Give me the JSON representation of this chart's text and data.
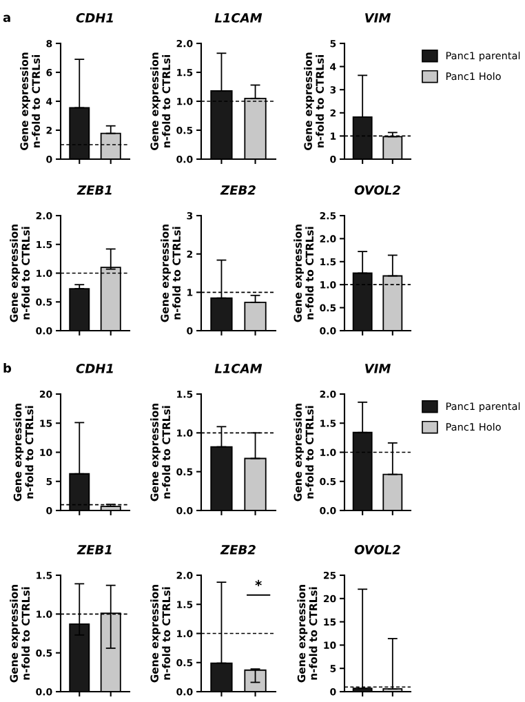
{
  "chart_data": [
    {
      "type": "bar",
      "title": "CDH1",
      "ylabel": "Gene expression\nn-fold to CTRLsi",
      "annotations": [
        "a"
      ],
      "categories": [
        null,
        null
      ],
      "ylim": [
        0,
        8
      ],
      "yticks": [
        0,
        2,
        4,
        6,
        8
      ],
      "tick_labels": "y",
      "ref_lines": [
        {
          "axis": "y",
          "value": 1,
          "line_style": "dashed"
        }
      ],
      "series": [
        {
          "color": "#1a1a1a",
          "values": [
            3.55,
            null
          ],
          "errors": [
            [
              3.55,
              6.9
            ],
            null
          ]
        },
        {
          "color": "#c8c8c8",
          "values": [
            null,
            1.78
          ],
          "errors": [
            null,
            [
              1.78,
              2.3
            ]
          ]
        }
      ]
    },
    {
      "type": "bar",
      "title": "L1CAM",
      "ylabel": "Gene expression\nn-fold to CTRLsi",
      "categories": [
        null,
        null
      ],
      "ylim": [
        0,
        2
      ],
      "yticks": [
        {
          "value": 0,
          "label": "0.0"
        },
        0.5,
        {
          "value": 1,
          "label": "1.0"
        },
        1.5,
        {
          "value": 2,
          "label": "2.0"
        }
      ],
      "tick_labels": "y",
      "ref_lines": [
        {
          "axis": "y",
          "value": 1,
          "line_style": "dashed"
        }
      ],
      "series": [
        {
          "color": "#1a1a1a",
          "values": [
            1.18,
            null
          ],
          "errors": [
            [
              1.18,
              1.83
            ],
            null
          ]
        },
        {
          "color": "#c8c8c8",
          "values": [
            null,
            1.05
          ],
          "errors": [
            null,
            [
              1.05,
              1.28
            ]
          ]
        }
      ]
    },
    {
      "type": "bar",
      "title": "VIM",
      "ylabel": "Gene expression\nn-fold to CTRLsi",
      "categories": [
        null,
        null
      ],
      "ylim": [
        0,
        5
      ],
      "yticks": [
        0,
        1,
        2,
        3,
        4,
        5
      ],
      "tick_labels": "y",
      "legend": "right",
      "ref_lines": [
        {
          "axis": "y",
          "value": 1,
          "line_style": "dashed"
        }
      ],
      "series": [
        {
          "name": "Panc1 parental",
          "color": "#1a1a1a",
          "values": [
            1.82,
            null
          ],
          "errors": [
            [
              1.82,
              3.62
            ],
            null
          ]
        },
        {
          "name": "Panc1 Holo",
          "color": "#c8c8c8",
          "values": [
            null,
            0.97
          ],
          "errors": [
            null,
            [
              0.97,
              1.15
            ]
          ]
        }
      ]
    },
    {
      "type": "bar",
      "title": "ZEB1",
      "ylabel": "Gene expression\nn-fold to CTRLsi",
      "categories": [
        null,
        null
      ],
      "ylim": [
        0,
        2
      ],
      "yticks": [
        {
          "value": 0,
          "label": "0.0"
        },
        0.5,
        {
          "value": 1,
          "label": "1.0"
        },
        1.5,
        {
          "value": 2,
          "label": "2.0"
        }
      ],
      "tick_labels": "y",
      "ref_lines": [
        {
          "axis": "y",
          "value": 1,
          "line_style": "dashed"
        }
      ],
      "series": [
        {
          "color": "#1a1a1a",
          "values": [
            0.73,
            null
          ],
          "errors": [
            [
              0.73,
              0.8
            ],
            null
          ]
        },
        {
          "color": "#c8c8c8",
          "values": [
            null,
            1.1
          ],
          "errors": [
            null,
            [
              1.07,
              1.42
            ]
          ]
        }
      ]
    },
    {
      "type": "bar",
      "title": "ZEB2",
      "ylabel": "Gene expression\nn-fold to CTRLsi",
      "categories": [
        null,
        null
      ],
      "ylim": [
        0,
        3
      ],
      "yticks": [
        0,
        1,
        2,
        3
      ],
      "tick_labels": "y",
      "ref_lines": [
        {
          "axis": "y",
          "value": 1,
          "line_style": "dashed"
        }
      ],
      "series": [
        {
          "color": "#1a1a1a",
          "values": [
            0.85,
            null
          ],
          "errors": [
            [
              0.85,
              1.84
            ],
            null
          ]
        },
        {
          "color": "#c8c8c8",
          "values": [
            null,
            0.74
          ],
          "errors": [
            null,
            [
              0.74,
              0.92
            ]
          ]
        }
      ]
    },
    {
      "type": "bar",
      "title": "OVOL2",
      "ylabel": "Gene expression\nn-fold to CTRLsi",
      "categories": [
        null,
        null
      ],
      "ylim": [
        0,
        2.5
      ],
      "yticks": [
        {
          "value": 0,
          "label": "0.0"
        },
        0.5,
        {
          "value": 1,
          "label": "1.0"
        },
        1.5,
        {
          "value": 2,
          "label": "2.0"
        },
        2.5
      ],
      "tick_labels": "y",
      "ref_lines": [
        {
          "axis": "y",
          "value": 1,
          "line_style": "dashed"
        }
      ],
      "series": [
        {
          "color": "#1a1a1a",
          "values": [
            1.25,
            null
          ],
          "errors": [
            [
              1.25,
              1.72
            ],
            null
          ]
        },
        {
          "color": "#c8c8c8",
          "values": [
            null,
            1.19
          ],
          "errors": [
            null,
            [
              1.19,
              1.64
            ]
          ]
        }
      ]
    },
    {
      "type": "bar",
      "title": "CDH1",
      "ylabel": "Gene expression\nn-fold to CTRLsi",
      "annotations": [
        "b"
      ],
      "categories": [
        null,
        null
      ],
      "ylim": [
        0,
        20
      ],
      "yticks": [
        0,
        5,
        10,
        15,
        20
      ],
      "tick_labels": "y",
      "ref_lines": [
        {
          "axis": "y",
          "value": 1,
          "line_style": "dashed"
        }
      ],
      "series": [
        {
          "color": "#1a1a1a",
          "values": [
            6.3,
            null
          ],
          "errors": [
            [
              6.3,
              15.1
            ],
            null
          ]
        },
        {
          "color": "#c8c8c8",
          "values": [
            null,
            0.7
          ],
          "errors": [
            null,
            [
              0.7,
              1.05
            ]
          ]
        }
      ]
    },
    {
      "type": "bar",
      "title": "L1CAM",
      "ylabel": "Gene expression\nn-fold to CTRLsi",
      "categories": [
        null,
        null
      ],
      "ylim": [
        0,
        1.5
      ],
      "yticks": [
        {
          "value": 0,
          "label": "0.0"
        },
        0.5,
        {
          "value": 1,
          "label": "1.0"
        },
        1.5
      ],
      "tick_labels": "y",
      "ref_lines": [
        {
          "axis": "y",
          "value": 1,
          "line_style": "dashed"
        }
      ],
      "series": [
        {
          "color": "#1a1a1a",
          "values": [
            0.82,
            null
          ],
          "errors": [
            [
              0.82,
              1.08
            ],
            null
          ]
        },
        {
          "color": "#c8c8c8",
          "values": [
            null,
            0.67
          ],
          "errors": [
            null,
            [
              0.67,
              1.0
            ]
          ]
        }
      ]
    },
    {
      "type": "bar",
      "title": "VIM",
      "ylabel": "Gene expression\nn-fold to CTRLsi",
      "categories": [
        null,
        null
      ],
      "ylim": [
        0,
        2
      ],
      "yticks": [
        {
          "value": 0,
          "label": "0.0"
        },
        0.5,
        {
          "value": 1,
          "label": "1.0"
        },
        1.5,
        {
          "value": 2,
          "label": "2.0"
        }
      ],
      "tick_labels": "y",
      "legend": "right",
      "ref_lines": [
        {
          "axis": "y",
          "value": 1,
          "line_style": "dashed"
        }
      ],
      "series": [
        {
          "name": "Panc1 parental",
          "color": "#1a1a1a",
          "values": [
            1.34,
            null
          ],
          "errors": [
            [
              1.34,
              1.86
            ],
            null
          ]
        },
        {
          "name": "Panc1 Holo",
          "color": "#c8c8c8",
          "values": [
            null,
            0.62
          ],
          "errors": [
            null,
            [
              0.62,
              1.16
            ]
          ]
        }
      ]
    },
    {
      "type": "bar",
      "title": "ZEB1",
      "ylabel": "Gene expression\nn-fold to CTRLsi",
      "categories": [
        null,
        null
      ],
      "ylim": [
        0,
        1.5
      ],
      "yticks": [
        {
          "value": 0,
          "label": "0.0"
        },
        0.5,
        {
          "value": 1,
          "label": "1.0"
        },
        1.5
      ],
      "tick_labels": "y",
      "ref_lines": [
        {
          "axis": "y",
          "value": 1,
          "line_style": "dashed"
        }
      ],
      "series": [
        {
          "color": "#1a1a1a",
          "values": [
            0.87,
            null
          ],
          "errors": [
            [
              0.73,
              1.39
            ],
            null
          ]
        },
        {
          "color": "#c8c8c8",
          "values": [
            null,
            1.01
          ],
          "errors": [
            null,
            [
              0.56,
              1.37
            ]
          ]
        }
      ]
    },
    {
      "type": "bar",
      "title": "ZEB2",
      "ylabel": "Gene expression\nn-fold to CTRLsi",
      "annotations": [
        "*"
      ],
      "categories": [
        null,
        null
      ],
      "ylim": [
        0,
        2
      ],
      "yticks": [
        {
          "value": 0,
          "label": "0.0"
        },
        0.5,
        {
          "value": 1,
          "label": "1.0"
        },
        1.5,
        {
          "value": 2,
          "label": "2.0"
        }
      ],
      "tick_labels": "y",
      "ref_lines": [
        {
          "axis": "y",
          "value": 1,
          "line_style": "dashed"
        }
      ],
      "series": [
        {
          "color": "#1a1a1a",
          "values": [
            0.49,
            null
          ],
          "errors": [
            [
              0.49,
              1.88
            ],
            null
          ]
        },
        {
          "color": "#c8c8c8",
          "values": [
            null,
            0.37
          ],
          "errors": [
            null,
            [
              0.16,
              0.39
            ]
          ]
        }
      ]
    },
    {
      "type": "bar",
      "title": "OVOL2",
      "ylabel": "Gene expression\nn-fold to CTRLsi",
      "categories": [
        null,
        null
      ],
      "ylim": [
        0,
        25
      ],
      "yticks": [
        0,
        5,
        10,
        15,
        20,
        25
      ],
      "tick_labels": "y",
      "ref_lines": [
        {
          "axis": "y",
          "value": 1,
          "line_style": "dashed"
        }
      ],
      "series": [
        {
          "color": "#1a1a1a",
          "values": [
            0.7,
            null
          ],
          "errors": [
            [
              0.7,
              22
            ],
            null
          ]
        },
        {
          "color": "#c8c8c8",
          "values": [
            null,
            0.6
          ],
          "errors": [
            null,
            [
              0.6,
              11.4
            ]
          ]
        }
      ]
    }
  ]
}
